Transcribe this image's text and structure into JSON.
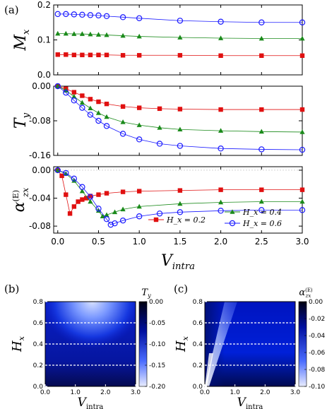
{
  "chart_data": [
    {
      "panel": "(a)",
      "type": "line",
      "xlabel": "V",
      "xlabel_sub": "intra",
      "x_ticks": [
        "0.0",
        "0.5",
        "1.0",
        "1.5",
        "2.0",
        "2.5",
        "3.0"
      ],
      "xlim": [
        -0.05,
        3.0
      ],
      "subplots": [
        {
          "ylabel": "M",
          "ylabel_sub": "x",
          "ylim": [
            0.0,
            0.2
          ],
          "y_ticks": [
            "0.2",
            "0.1",
            "0.0"
          ],
          "series": [
            {
              "color": "#e01010",
              "marker": "square",
              "x": [
                0.0,
                0.1,
                0.2,
                0.3,
                0.4,
                0.5,
                0.6,
                0.8,
                1.0,
                1.5,
                2.0,
                2.5,
                3.0
              ],
              "y": [
                0.058,
                0.058,
                0.057,
                0.057,
                0.057,
                0.057,
                0.057,
                0.056,
                0.056,
                0.056,
                0.055,
                0.055,
                0.055
              ]
            },
            {
              "color": "#1a8a1a",
              "marker": "triangle",
              "x": [
                0.0,
                0.1,
                0.2,
                0.3,
                0.4,
                0.5,
                0.6,
                0.8,
                1.0,
                1.5,
                2.0,
                2.5,
                3.0
              ],
              "y": [
                0.118,
                0.118,
                0.117,
                0.117,
                0.116,
                0.115,
                0.114,
                0.112,
                0.11,
                0.107,
                0.105,
                0.104,
                0.104
              ]
            },
            {
              "color": "#1a1aff",
              "marker": "circle",
              "x": [
                0.0,
                0.1,
                0.2,
                0.3,
                0.4,
                0.5,
                0.6,
                0.8,
                1.0,
                1.5,
                2.0,
                2.5,
                3.0
              ],
              "y": [
                0.174,
                0.174,
                0.173,
                0.172,
                0.171,
                0.17,
                0.168,
                0.165,
                0.162,
                0.155,
                0.152,
                0.15,
                0.15
              ]
            }
          ]
        },
        {
          "ylabel": "T",
          "ylabel_sub": "y",
          "ylim": [
            -0.16,
            0.0
          ],
          "y_ticks": [
            "0.00",
            "-0.08",
            "-0.16"
          ],
          "series": [
            {
              "color": "#e01010",
              "marker": "square",
              "x": [
                0.0,
                0.1,
                0.2,
                0.3,
                0.4,
                0.5,
                0.6,
                0.8,
                1.0,
                1.25,
                1.5,
                2.0,
                2.5,
                3.0
              ],
              "y": [
                0.0,
                -0.006,
                -0.014,
                -0.022,
                -0.03,
                -0.036,
                -0.041,
                -0.047,
                -0.05,
                -0.052,
                -0.053,
                -0.054,
                -0.054,
                -0.054
              ]
            },
            {
              "color": "#1a8a1a",
              "marker": "triangle",
              "x": [
                0.0,
                0.1,
                0.2,
                0.3,
                0.4,
                0.5,
                0.6,
                0.8,
                1.0,
                1.25,
                1.5,
                2.0,
                2.5,
                3.0
              ],
              "y": [
                0.0,
                -0.01,
                -0.024,
                -0.038,
                -0.051,
                -0.062,
                -0.071,
                -0.083,
                -0.09,
                -0.096,
                -0.1,
                -0.103,
                -0.105,
                -0.106
              ]
            },
            {
              "color": "#1a1aff",
              "marker": "circle",
              "x": [
                0.0,
                0.1,
                0.2,
                0.3,
                0.4,
                0.5,
                0.6,
                0.8,
                1.0,
                1.25,
                1.5,
                2.0,
                2.5,
                3.0
              ],
              "y": [
                0.0,
                -0.015,
                -0.033,
                -0.05,
                -0.066,
                -0.08,
                -0.092,
                -0.11,
                -0.123,
                -0.133,
                -0.138,
                -0.144,
                -0.146,
                -0.147
              ]
            }
          ]
        },
        {
          "ylabel": "α",
          "ylabel_sub": "zx",
          "ylabel_sup": "(E)",
          "ylim": [
            -0.09,
            0.005
          ],
          "y_ticks": [
            "0.00",
            "-0.04",
            "-0.08"
          ],
          "series": [
            {
              "name": "H_x = 0.2",
              "color": "#e01010",
              "marker": "square",
              "x": [
                0.0,
                0.05,
                0.1,
                0.15,
                0.2,
                0.25,
                0.3,
                0.35,
                0.4,
                0.5,
                0.6,
                0.8,
                1.0,
                1.5,
                2.0,
                2.5,
                3.0
              ],
              "y": [
                0.0,
                -0.008,
                -0.035,
                -0.062,
                -0.052,
                -0.045,
                -0.042,
                -0.04,
                -0.037,
                -0.035,
                -0.033,
                -0.031,
                -0.03,
                -0.029,
                -0.028,
                -0.028,
                -0.028
              ]
            },
            {
              "name": "H_x = 0.4",
              "color": "#1a8a1a",
              "marker": "triangle",
              "x": [
                0.0,
                0.1,
                0.2,
                0.3,
                0.4,
                0.5,
                0.55,
                0.6,
                0.7,
                0.8,
                1.0,
                1.5,
                2.0,
                2.5,
                3.0
              ],
              "y": [
                0.0,
                -0.005,
                -0.015,
                -0.03,
                -0.045,
                -0.058,
                -0.066,
                -0.064,
                -0.06,
                -0.056,
                -0.052,
                -0.048,
                -0.046,
                -0.045,
                -0.045
              ]
            },
            {
              "name": "H_x = 0.6",
              "color": "#1a1aff",
              "marker": "circle",
              "x": [
                0.0,
                0.1,
                0.2,
                0.3,
                0.4,
                0.5,
                0.6,
                0.65,
                0.7,
                0.8,
                1.0,
                1.25,
                1.5,
                2.0,
                2.5,
                3.0
              ],
              "y": [
                0.0,
                -0.004,
                -0.012,
                -0.024,
                -0.038,
                -0.055,
                -0.07,
                -0.078,
                -0.076,
                -0.072,
                -0.066,
                -0.062,
                -0.06,
                -0.058,
                -0.057,
                -0.057
              ]
            }
          ]
        }
      ]
    },
    {
      "panel": "(b)",
      "type": "heatmap",
      "xlabel": "V",
      "xlabel_sub": "intra",
      "ylabel": "H",
      "ylabel_sub": "x",
      "x_ticks": [
        "0.0",
        "1.0",
        "2.0",
        "3.0"
      ],
      "y_ticks": [
        "0.8",
        "0.6",
        "0.4",
        "0.2",
        "0.0"
      ],
      "colorbar_label": "T",
      "colorbar_label_sub": "y",
      "colorbar_ticks": [
        "0.00",
        "-0.05",
        "-0.10",
        "-0.15",
        "-0.20"
      ],
      "clim": [
        -0.2,
        0.0
      ],
      "dashed_lines_at_y": [
        0.2,
        0.4,
        0.6
      ]
    },
    {
      "panel": "(c)",
      "type": "heatmap",
      "xlabel": "V",
      "xlabel_sub": "intra",
      "ylabel": "H",
      "ylabel_sub": "x",
      "x_ticks": [
        "0.0",
        "1.0",
        "2.0",
        "3.0"
      ],
      "y_ticks": [
        "0.8",
        "0.6",
        "0.4",
        "0.2",
        "0.0"
      ],
      "colorbar_label": "α",
      "colorbar_label_sub": "zx",
      "colorbar_label_sup": "(E)",
      "colorbar_ticks": [
        "0.00",
        "-0.02",
        "-0.04",
        "-0.06",
        "-0.08",
        "-0.10"
      ],
      "clim": [
        -0.1,
        0.0
      ],
      "dashed_lines_at_y": [
        0.2,
        0.4,
        0.6
      ]
    }
  ]
}
